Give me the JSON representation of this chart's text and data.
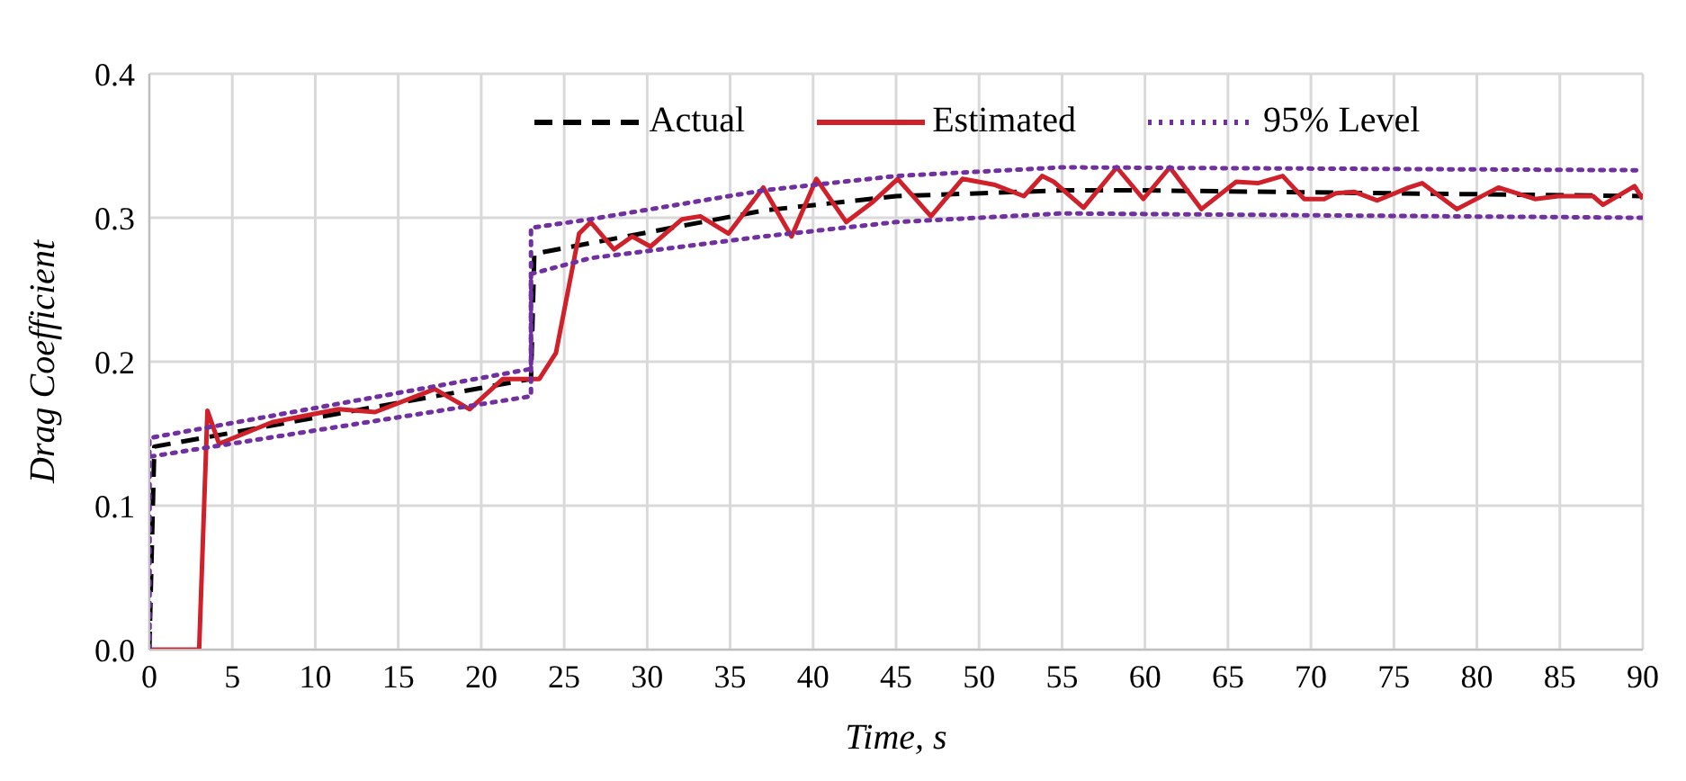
{
  "chart_data": {
    "type": "line",
    "xlabel": "Time, s",
    "ylabel": "Drag Coefficient",
    "xlim": [
      0,
      90
    ],
    "xticks": [
      0,
      5,
      10,
      15,
      20,
      25,
      30,
      35,
      40,
      45,
      50,
      55,
      60,
      65,
      70,
      75,
      80,
      85,
      90
    ],
    "ylim": [
      0,
      0.4
    ],
    "yticks": [
      {
        "value": 0,
        "label": "0.0"
      },
      {
        "value": 0.1,
        "label": "0.1"
      },
      {
        "value": 0.2,
        "label": "0.2"
      },
      {
        "value": 0.3,
        "label": "0.3"
      },
      {
        "value": 0.4,
        "label": "0.4"
      }
    ],
    "grid": true,
    "legend": "top",
    "marker": "none",
    "series": [
      {
        "name": "Actual",
        "color": "#000000",
        "line_style": "dashed",
        "x": [
          0,
          0.3,
          23,
          23.2,
          37,
          45,
          55,
          60,
          90
        ],
        "values": [
          0,
          0.141,
          0.188,
          0.275,
          0.305,
          0.315,
          0.319,
          0.319,
          0.315
        ]
      },
      {
        "name": "Estimated",
        "color": "#d0202a",
        "line_style": "solid",
        "x": [
          0,
          3,
          3.5,
          4.2,
          7.4,
          11.4,
          13.6,
          17.2,
          19.3,
          21.3,
          23.5,
          24.5,
          25.9,
          26.6,
          28,
          29.1,
          30.2,
          32.1,
          33.2,
          34.9,
          37,
          38.7,
          40.2,
          42,
          43.6,
          45.1,
          47.1,
          49,
          50.9,
          52.7,
          53.8,
          54.5,
          56.3,
          58.3,
          59.9,
          61.5,
          63.4,
          65.5,
          66.8,
          68.3,
          69.6,
          70.8,
          71.5,
          72.6,
          74,
          75.9,
          76.7,
          78.8,
          81.3,
          83.5,
          84.9,
          87,
          87.6,
          89.5,
          90
        ],
        "values": [
          0,
          0,
          0.166,
          0.143,
          0.158,
          0.167,
          0.165,
          0.181,
          0.167,
          0.188,
          0.188,
          0.206,
          0.289,
          0.297,
          0.278,
          0.287,
          0.28,
          0.299,
          0.301,
          0.289,
          0.321,
          0.287,
          0.327,
          0.297,
          0.311,
          0.327,
          0.301,
          0.327,
          0.323,
          0.315,
          0.329,
          0.325,
          0.307,
          0.335,
          0.313,
          0.335,
          0.306,
          0.325,
          0.324,
          0.329,
          0.313,
          0.313,
          0.317,
          0.318,
          0.312,
          0.321,
          0.324,
          0.306,
          0.321,
          0.313,
          0.315,
          0.315,
          0.309,
          0.322,
          0.313
        ]
      },
      {
        "name": "95% Level",
        "color": "#7030a0",
        "line_style": "dotted",
        "x": [
          0,
          0,
          23,
          23,
          26.6,
          37,
          45,
          55,
          90
        ],
        "values": [
          0,
          0.147,
          0.195,
          0.293,
          0.299,
          0.319,
          0.329,
          0.335,
          0.333
        ]
      },
      {
        "color": "#7030a0",
        "line_style": "dotted",
        "x": [
          0,
          0,
          23,
          23,
          26.6,
          37,
          45,
          55,
          90
        ],
        "values": [
          0,
          0.134,
          0.176,
          0.261,
          0.272,
          0.287,
          0.297,
          0.303,
          0.3
        ]
      }
    ]
  }
}
